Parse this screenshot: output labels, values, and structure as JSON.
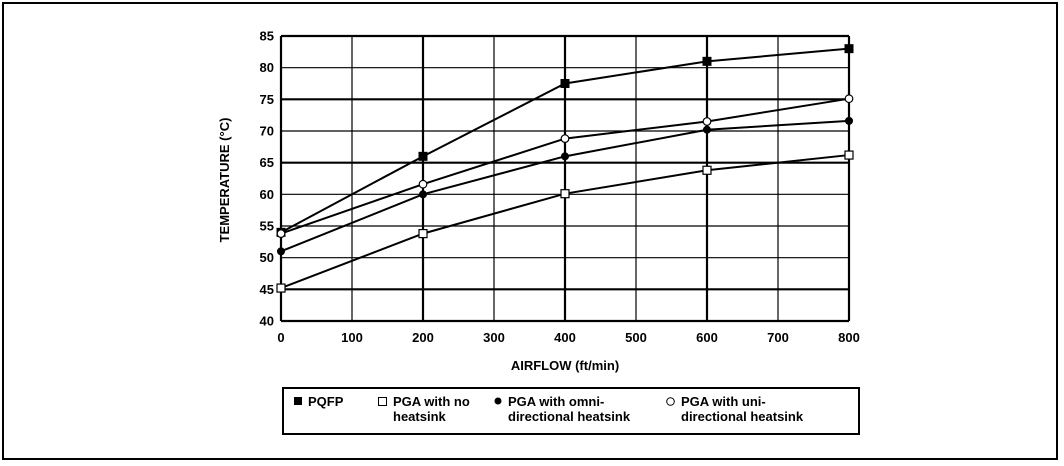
{
  "chart_data": {
    "type": "line",
    "xlabel": "AIRFLOW (ft/min)",
    "ylabel": "TEMPERATURE (°C)",
    "xlim": [
      0,
      800
    ],
    "ylim": [
      40,
      85
    ],
    "x_ticks": [
      "0",
      "100",
      "200",
      "300",
      "400",
      "500",
      "600",
      "700",
      "800"
    ],
    "y_ticks": [
      "40",
      "45",
      "50",
      "55",
      "60",
      "65",
      "70",
      "75",
      "80",
      "85"
    ],
    "grid": true,
    "legend_position": "bottom",
    "series": [
      {
        "name": "PQFP",
        "marker": "filled-square",
        "x": [
          0,
          200,
          400,
          600,
          800
        ],
        "values": [
          54,
          66,
          77.5,
          81,
          83
        ]
      },
      {
        "name": "PGA with no heatsink",
        "marker": "open-square",
        "x": [
          0,
          200,
          400,
          600,
          800
        ],
        "values": [
          45.2,
          53.8,
          60.1,
          63.8,
          66.2
        ]
      },
      {
        "name": "PGA with omni-directional heatsink",
        "marker": "filled-circle",
        "x": [
          0,
          200,
          400,
          600,
          800
        ],
        "values": [
          51,
          60,
          66,
          70.2,
          71.6
        ]
      },
      {
        "name": "PGA with uni-directional heatsink",
        "marker": "open-circle",
        "x": [
          0,
          200,
          400,
          600,
          800
        ],
        "values": [
          53.8,
          61.6,
          68.8,
          71.5,
          75.1
        ]
      }
    ]
  },
  "legend": [
    {
      "marker": "filled-square",
      "text": "PQFP"
    },
    {
      "marker": "open-square",
      "text": "PGA with no\nheatsink"
    },
    {
      "marker": "filled-circle",
      "text": "PGA with omni-\ndirectional heatsink"
    },
    {
      "marker": "open-circle",
      "text": "PGA with uni-\ndirectional heatsink"
    }
  ],
  "colors": {
    "line": "#000000",
    "background": "#ffffff"
  }
}
